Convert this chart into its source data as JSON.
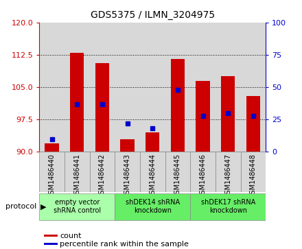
{
  "title": "GDS5375 / ILMN_3204975",
  "samples": [
    "GSM1486440",
    "GSM1486441",
    "GSM1486442",
    "GSM1486443",
    "GSM1486444",
    "GSM1486445",
    "GSM1486446",
    "GSM1486447",
    "GSM1486448"
  ],
  "counts": [
    92.0,
    113.0,
    110.5,
    93.0,
    94.5,
    111.5,
    106.5,
    107.5,
    103.0
  ],
  "percentile_ranks": [
    10,
    37,
    37,
    22,
    18,
    48,
    28,
    30,
    28
  ],
  "ylim_left": [
    90,
    120
  ],
  "ylim_right": [
    0,
    100
  ],
  "yticks_left": [
    90,
    97.5,
    105,
    112.5,
    120
  ],
  "yticks_right": [
    0,
    25,
    50,
    75,
    100
  ],
  "groups": [
    {
      "label": "empty vector\nshRNA control",
      "start": 0,
      "end": 3,
      "color": "#aaffaa"
    },
    {
      "label": "shDEK14 shRNA\nknockdown",
      "start": 3,
      "end": 6,
      "color": "#66ee66"
    },
    {
      "label": "shDEK17 shRNA\nknockdown",
      "start": 6,
      "end": 9,
      "color": "#66ee66"
    }
  ],
  "bar_color": "#cc0000",
  "percentile_color": "#0000cc",
  "bar_width": 0.55,
  "cell_bg": "#d8d8d8",
  "plot_bg": "#ffffff"
}
